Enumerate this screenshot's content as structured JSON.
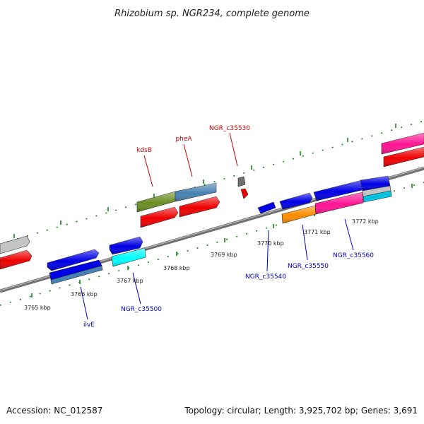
{
  "title": "Rhizobium sp. NGR234, complete genome",
  "footer": {
    "accession": "Accession: NC_012587",
    "summary": "Topology: circular; Length: 3,925,702 bp; Genes: 3,691"
  },
  "colors": {
    "backbone": "#8c8c8c",
    "tick": "#128012",
    "upper_label": "#cc0000",
    "lower_label": "#0000bb"
  },
  "kbp_labels": [
    "3765 kbp",
    "3766 kbp",
    "3767 kbp",
    "3768 kbp",
    "3769 kbp",
    "3770 kbp",
    "3771 kbp",
    "3772 kbp"
  ],
  "upper_labels": [
    "kdsB",
    "pheA",
    "NGR_c35530"
  ],
  "lower_labels": [
    "ilvE",
    "NGR_c35500",
    "NGR_c35540",
    "NGR_c35550",
    "NGR_c35560"
  ]
}
